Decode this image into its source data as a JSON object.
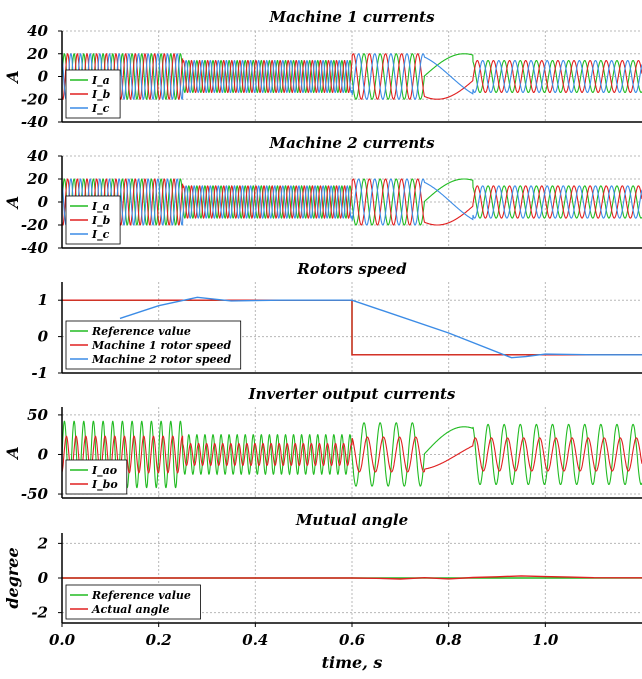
{
  "figure": {
    "xlabel": "time, s"
  },
  "colors": {
    "green": "#22bb22",
    "red": "#e02020",
    "blue": "#3c8ce6",
    "grid": "#b8b8b8",
    "axis": "#000000"
  },
  "chart_data": [
    {
      "type": "line",
      "title": "Machine 1 currents",
      "ylabel": "A",
      "xlim": [
        0,
        1.2
      ],
      "ylim": [
        -40,
        40
      ],
      "yticks": [
        40,
        20,
        0,
        -20,
        -40
      ],
      "xticks": [
        0.0,
        0.2,
        0.4,
        0.6,
        0.8,
        1.0
      ],
      "show_xtick_labels": false,
      "grid": true,
      "legend": "bottom-left",
      "series": [
        {
          "name": "I_a",
          "color": "green"
        },
        {
          "name": "I_b",
          "color": "red"
        },
        {
          "name": "I_c",
          "color": "blue"
        }
      ],
      "segments": [
        {
          "t": [
            0,
            0.25
          ],
          "amplitude": 20,
          "freq_hz": 50
        },
        {
          "t": [
            0.25,
            0.6
          ],
          "amplitude": 14,
          "freq_hz": 60
        },
        {
          "t": [
            0.6,
            0.75
          ],
          "amplitude": 20,
          "freq_hz": 30
        },
        {
          "t": [
            0.75,
            0.85
          ],
          "amplitude": 20,
          "freq_hz": 3
        },
        {
          "t": [
            0.85,
            1.2
          ],
          "amplitude": 14,
          "freq_hz": 30
        }
      ]
    },
    {
      "type": "line",
      "title": "Machine 2  currents",
      "ylabel": "A",
      "xlim": [
        0,
        1.2
      ],
      "ylim": [
        -40,
        40
      ],
      "yticks": [
        40,
        20,
        0,
        -20,
        -40
      ],
      "xticks": [
        0.0,
        0.2,
        0.4,
        0.6,
        0.8,
        1.0
      ],
      "show_xtick_labels": false,
      "grid": true,
      "legend": "bottom-left",
      "series": [
        {
          "name": "I_a",
          "color": "green"
        },
        {
          "name": "I_b",
          "color": "red"
        },
        {
          "name": "I_c",
          "color": "blue"
        }
      ],
      "segments": [
        {
          "t": [
            0,
            0.25
          ],
          "amplitude": 20,
          "freq_hz": 50
        },
        {
          "t": [
            0.25,
            0.6
          ],
          "amplitude": 14,
          "freq_hz": 60
        },
        {
          "t": [
            0.6,
            0.75
          ],
          "amplitude": 20,
          "freq_hz": 30
        },
        {
          "t": [
            0.75,
            0.85
          ],
          "amplitude": 20,
          "freq_hz": 3
        },
        {
          "t": [
            0.85,
            1.2
          ],
          "amplitude": 14,
          "freq_hz": 30
        }
      ]
    },
    {
      "type": "line",
      "title": "Rotors speed",
      "ylabel": "",
      "xlim": [
        0,
        1.2
      ],
      "ylim": [
        -1,
        1.5
      ],
      "yticks": [
        1,
        0,
        -1
      ],
      "xticks": [
        0.0,
        0.2,
        0.4,
        0.6,
        0.8,
        1.0
      ],
      "show_xtick_labels": false,
      "grid": true,
      "legend": "bottom-left",
      "series": [
        {
          "name": "Reference value",
          "color": "green",
          "x": [
            0,
            0.6,
            0.6,
            1.2
          ],
          "y": [
            1,
            1,
            -0.5,
            -0.5
          ]
        },
        {
          "name": "Machine 1 rotor speed",
          "color": "red",
          "x": [
            0,
            0.6,
            0.6,
            1.2
          ],
          "y": [
            1,
            1,
            -0.5,
            -0.5
          ]
        },
        {
          "name": "Machine 2 rotor speed",
          "color": "blue",
          "x": [
            0.12,
            0.2,
            0.28,
            0.35,
            0.45,
            0.6,
            0.8,
            0.93,
            0.96,
            1.0,
            1.1,
            1.2
          ],
          "y": [
            0.5,
            0.85,
            1.08,
            0.98,
            1.0,
            1.0,
            0.1,
            -0.58,
            -0.55,
            -0.48,
            -0.5,
            -0.5
          ]
        }
      ]
    },
    {
      "type": "line",
      "title": "Inverter output currents",
      "ylabel": "A",
      "xlim": [
        0,
        1.2
      ],
      "ylim": [
        -55,
        60
      ],
      "yticks": [
        50,
        0,
        -50
      ],
      "xticks": [
        0.0,
        0.2,
        0.4,
        0.6,
        0.8,
        1.0
      ],
      "show_xtick_labels": false,
      "grid": true,
      "legend": "bottom-left",
      "series": [
        {
          "name": "I_ao",
          "color": "green"
        },
        {
          "name": "I_bo",
          "color": "red"
        }
      ],
      "segments": [
        {
          "t": [
            0,
            0.25
          ],
          "amplitude": 42,
          "freq_hz": 50
        },
        {
          "t": [
            0.25,
            0.6
          ],
          "amplitude": 25,
          "freq_hz": 60
        },
        {
          "t": [
            0.6,
            0.75
          ],
          "amplitude": 40,
          "freq_hz": 30
        },
        {
          "t": [
            0.75,
            0.85
          ],
          "amplitude": 35,
          "freq_hz": 3
        },
        {
          "t": [
            0.85,
            1.2
          ],
          "amplitude": 38,
          "freq_hz": 30
        }
      ]
    },
    {
      "type": "line",
      "title": "Mutual angle",
      "ylabel": "degree",
      "xlim": [
        0,
        1.2
      ],
      "ylim": [
        -2.6,
        2.6
      ],
      "yticks": [
        2,
        0,
        -2
      ],
      "xticks": [
        0.0,
        0.2,
        0.4,
        0.6,
        0.8,
        1.0
      ],
      "xtick_labels": [
        "0.0",
        "0.2",
        "0.4",
        "0.6",
        "0.8",
        "1.0"
      ],
      "show_xtick_labels": true,
      "grid": true,
      "legend": "bottom-left",
      "series": [
        {
          "name": "Reference value",
          "color": "green",
          "x": [
            0,
            1.2
          ],
          "y": [
            0,
            0
          ]
        },
        {
          "name": "Actual angle",
          "color": "red",
          "x": [
            0,
            0.6,
            0.65,
            0.7,
            0.75,
            0.8,
            0.85,
            0.9,
            0.95,
            1.0,
            1.05,
            1.1,
            1.2
          ],
          "y": [
            0,
            0,
            -0.02,
            -0.06,
            0.02,
            -0.05,
            0.03,
            0.07,
            0.12,
            0.08,
            0.05,
            0.02,
            0.01
          ]
        }
      ]
    }
  ]
}
